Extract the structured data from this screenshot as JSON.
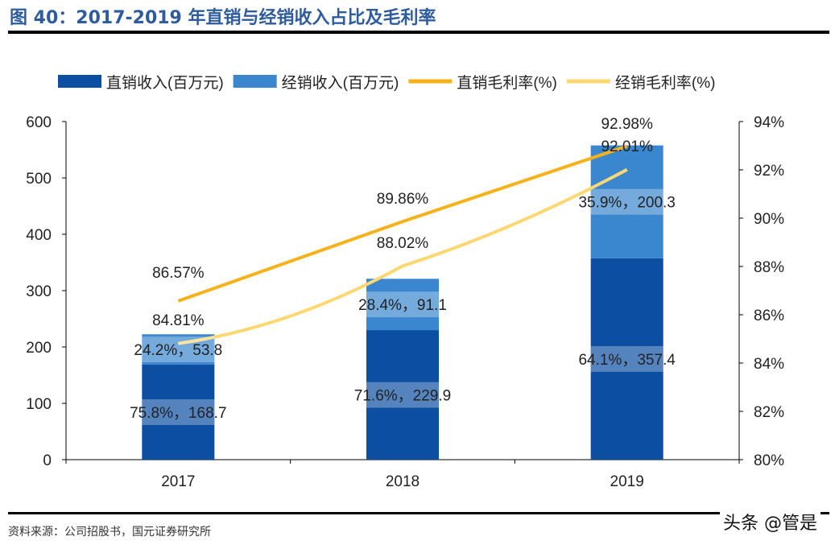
{
  "title": "图 40：2017-2019 年直销与经销收入占比及毛利率",
  "source": "资料来源：公司招股书，国元证券研究所",
  "watermark": "头条 @管是",
  "chart_data": {
    "type": "bar",
    "categories": [
      "2017",
      "2018",
      "2019"
    ],
    "ylim": [
      0,
      600
    ],
    "yticks": [
      "0",
      "100",
      "200",
      "300",
      "400",
      "500",
      "600"
    ],
    "y2lim": [
      80,
      94
    ],
    "y2ticks": [
      "80%",
      "82%",
      "84%",
      "86%",
      "88%",
      "90%",
      "92%",
      "94%"
    ],
    "legend_position": "top",
    "grid": false,
    "series": [
      {
        "name": "直销收入(百万元)",
        "kind": "bar",
        "color": "#0b4ea2",
        "values": [
          168.7,
          229.9,
          357.4
        ],
        "labels": [
          "75.8%，168.7",
          "71.6%，229.9",
          "64.1%，357.4"
        ]
      },
      {
        "name": "经销收入(百万元)",
        "kind": "bar",
        "color": "#3a86cf",
        "values": [
          53.8,
          91.1,
          200.3
        ],
        "labels": [
          "24.2%，53.8",
          "28.4%，91.1",
          "35.9%，200.3"
        ]
      },
      {
        "name": "直销毛利率(%)",
        "kind": "line",
        "axis": "right",
        "color": "#f5b21b",
        "values": [
          86.57,
          89.86,
          92.98
        ],
        "labels": [
          "86.57%",
          "89.86%",
          "92.98%"
        ]
      },
      {
        "name": "经销毛利率(%)",
        "kind": "line",
        "axis": "right",
        "color": "#fcd872",
        "values": [
          84.81,
          88.02,
          92.01
        ],
        "labels": [
          "84.81%",
          "88.02%",
          "92.01%"
        ]
      }
    ]
  }
}
